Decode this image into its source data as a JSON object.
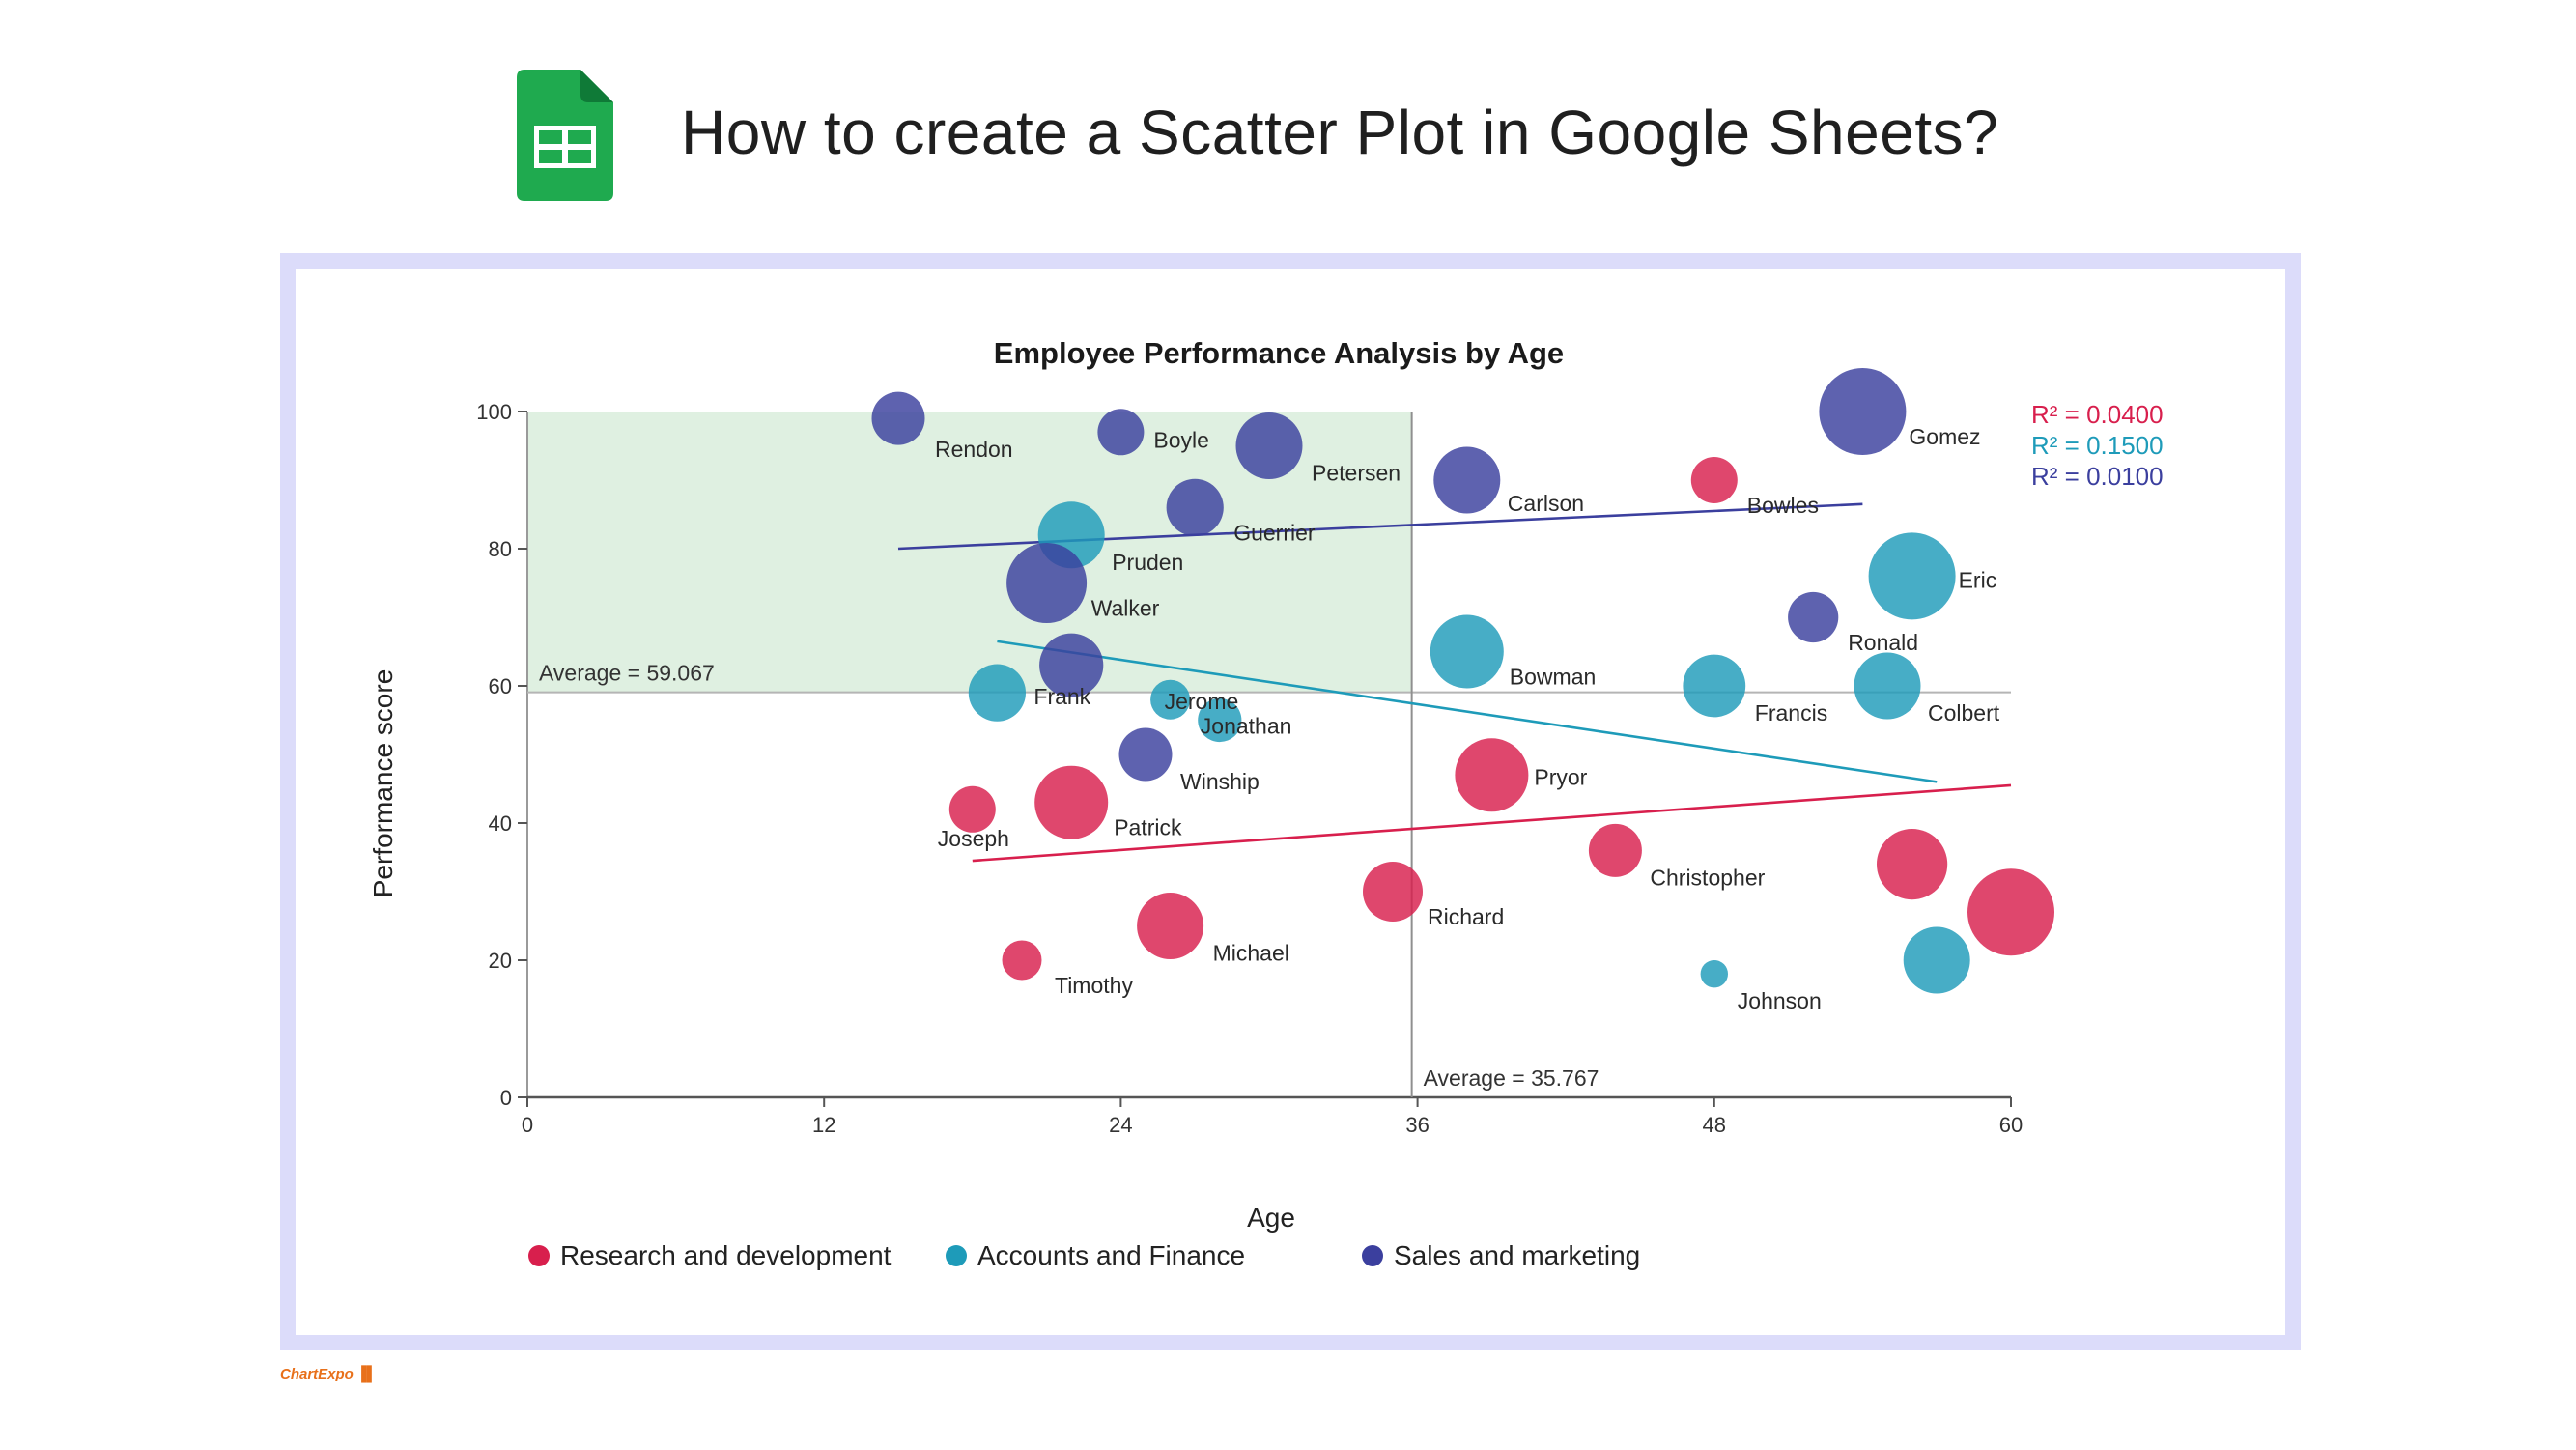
{
  "page": {
    "title": "How to create a Scatter Plot in Google Sheets?",
    "brand": "ChartExpo"
  },
  "icons": {
    "app_icon": "google-sheets-icon",
    "brand_icon": "chartexpo-logo-icon"
  },
  "colors": {
    "research": "#d81f4d",
    "accounts": "#1e9bb9",
    "sales": "#3b3f9e",
    "highlight": "#dff0e1",
    "frame": "#dcdcfa"
  },
  "chart_data": {
    "type": "scatter",
    "title": "Employee Performance Analysis by Age",
    "xlabel": "Age",
    "ylabel": "Performance score",
    "xlim": [
      0,
      60
    ],
    "ylim": [
      0,
      100
    ],
    "x_ticks": [
      "0",
      "12",
      "24",
      "36",
      "48",
      "60"
    ],
    "y_ticks": [
      "0",
      "20",
      "40",
      "60",
      "80",
      "100"
    ],
    "bubble": true,
    "legend_position": "bottom",
    "averages": {
      "x": 35.767,
      "x_label": "Average = 35.767",
      "y": 59.067,
      "y_label": "Average = 59.067",
      "highlight_quadrant": "top-left"
    },
    "series": [
      {
        "name": "Research and development",
        "color": "#d81f4d",
        "r_squared": "R² = 0.0400",
        "trend": [
          [
            18,
            34.5
          ],
          [
            60,
            45.5
          ]
        ],
        "points": [
          {
            "name": "Joseph",
            "x": 18,
            "y": 42,
            "size": 2
          },
          {
            "name": "Patrick",
            "x": 22,
            "y": 43,
            "size": 4
          },
          {
            "name": "Timothy",
            "x": 20,
            "y": 20,
            "size": 1.5
          },
          {
            "name": "Michael",
            "x": 26,
            "y": 25,
            "size": 3.5
          },
          {
            "name": "Richard",
            "x": 35,
            "y": 30,
            "size": 3
          },
          {
            "name": "Pryor",
            "x": 39,
            "y": 47,
            "size": 4
          },
          {
            "name": "Christopher",
            "x": 44,
            "y": 36,
            "size": 2.5
          },
          {
            "name": "Bowles",
            "x": 48,
            "y": 90,
            "size": 2
          },
          {
            "name": "",
            "x": 56,
            "y": 34,
            "size": 3.8
          },
          {
            "name": "",
            "x": 60,
            "y": 27,
            "size": 5
          }
        ]
      },
      {
        "name": "Accounts and Finance",
        "color": "#1e9bb9",
        "r_squared": "R² = 0.1500",
        "trend": [
          [
            19,
            66.5
          ],
          [
            57,
            46
          ]
        ],
        "points": [
          {
            "name": "Pruden",
            "x": 22,
            "y": 82,
            "size": 3.5
          },
          {
            "name": "Frank",
            "x": 19,
            "y": 59,
            "size": 2.8
          },
          {
            "name": "Jerome",
            "x": 26,
            "y": 58,
            "size": 1.5
          },
          {
            "name": "Jonathan",
            "x": 28,
            "y": 55,
            "size": 1.8
          },
          {
            "name": "Bowman",
            "x": 38,
            "y": 65,
            "size": 4
          },
          {
            "name": "Francis",
            "x": 48,
            "y": 60,
            "size": 3.2
          },
          {
            "name": "Colbert",
            "x": 55,
            "y": 60,
            "size": 3.5
          },
          {
            "name": "Eric",
            "x": 56,
            "y": 76,
            "size": 5
          },
          {
            "name": "Johnson",
            "x": 48,
            "y": 18,
            "size": 0.6
          },
          {
            "name": "",
            "x": 57,
            "y": 20,
            "size": 3.5
          }
        ]
      },
      {
        "name": "Sales and marketing",
        "color": "#3b3f9e",
        "r_squared": "R² = 0.0100",
        "trend": [
          [
            15,
            80
          ],
          [
            54,
            86.5
          ]
        ],
        "points": [
          {
            "name": "Rendon",
            "x": 15,
            "y": 99,
            "size": 2.5
          },
          {
            "name": "Boyle",
            "x": 24,
            "y": 97,
            "size": 2
          },
          {
            "name": "Petersen",
            "x": 30,
            "y": 95,
            "size": 3.5
          },
          {
            "name": "Guerrier",
            "x": 27,
            "y": 86,
            "size": 2.8
          },
          {
            "name": "Walker",
            "x": 21,
            "y": 75,
            "size": 4.5
          },
          {
            "name": "Carlson",
            "x": 38,
            "y": 90,
            "size": 3.5
          },
          {
            "name": "Gomez",
            "x": 54,
            "y": 100,
            "size": 5
          },
          {
            "name": "Ronald",
            "x": 52,
            "y": 70,
            "size": 2.3
          },
          {
            "name": "",
            "x": 22,
            "y": 63,
            "size": 3.3
          },
          {
            "name": "Winship",
            "x": 25,
            "y": 50,
            "size": 2.5
          }
        ]
      }
    ]
  }
}
